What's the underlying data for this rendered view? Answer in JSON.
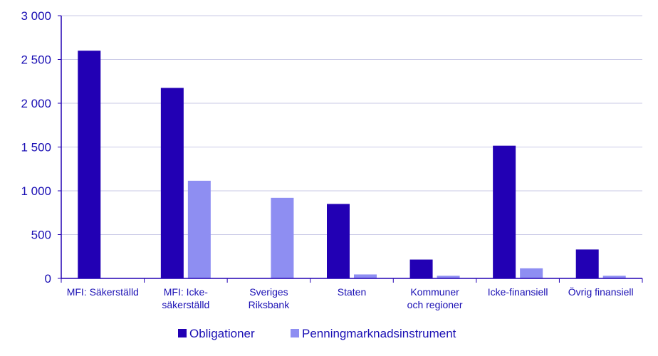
{
  "chart_data": {
    "type": "bar",
    "categories": [
      [
        "MFI: Säkerställd"
      ],
      [
        "MFI: Icke-",
        "säkerställd"
      ],
      [
        "Sveriges",
        "Riksbank"
      ],
      [
        "Staten"
      ],
      [
        "Kommuner",
        "och regioner"
      ],
      [
        "Icke-finansiell"
      ],
      [
        "Övrig finansiell"
      ]
    ],
    "series": [
      {
        "name": "Obligationer",
        "color": "#2200b4",
        "values": [
          2600,
          2175,
          0,
          850,
          215,
          1515,
          330
        ]
      },
      {
        "name": "Penningmarknadsinstrument",
        "color": "#8e8ef2",
        "values": [
          0,
          1115,
          920,
          45,
          30,
          115,
          30
        ]
      }
    ],
    "yticks": [
      "0",
      "500",
      "1 000",
      "1 500",
      "2 000",
      "2 500",
      "3 000"
    ],
    "ylim": [
      0,
      3000
    ],
    "grid": true,
    "legend_position": "bottom",
    "title": "",
    "xlabel": "",
    "ylabel": ""
  }
}
